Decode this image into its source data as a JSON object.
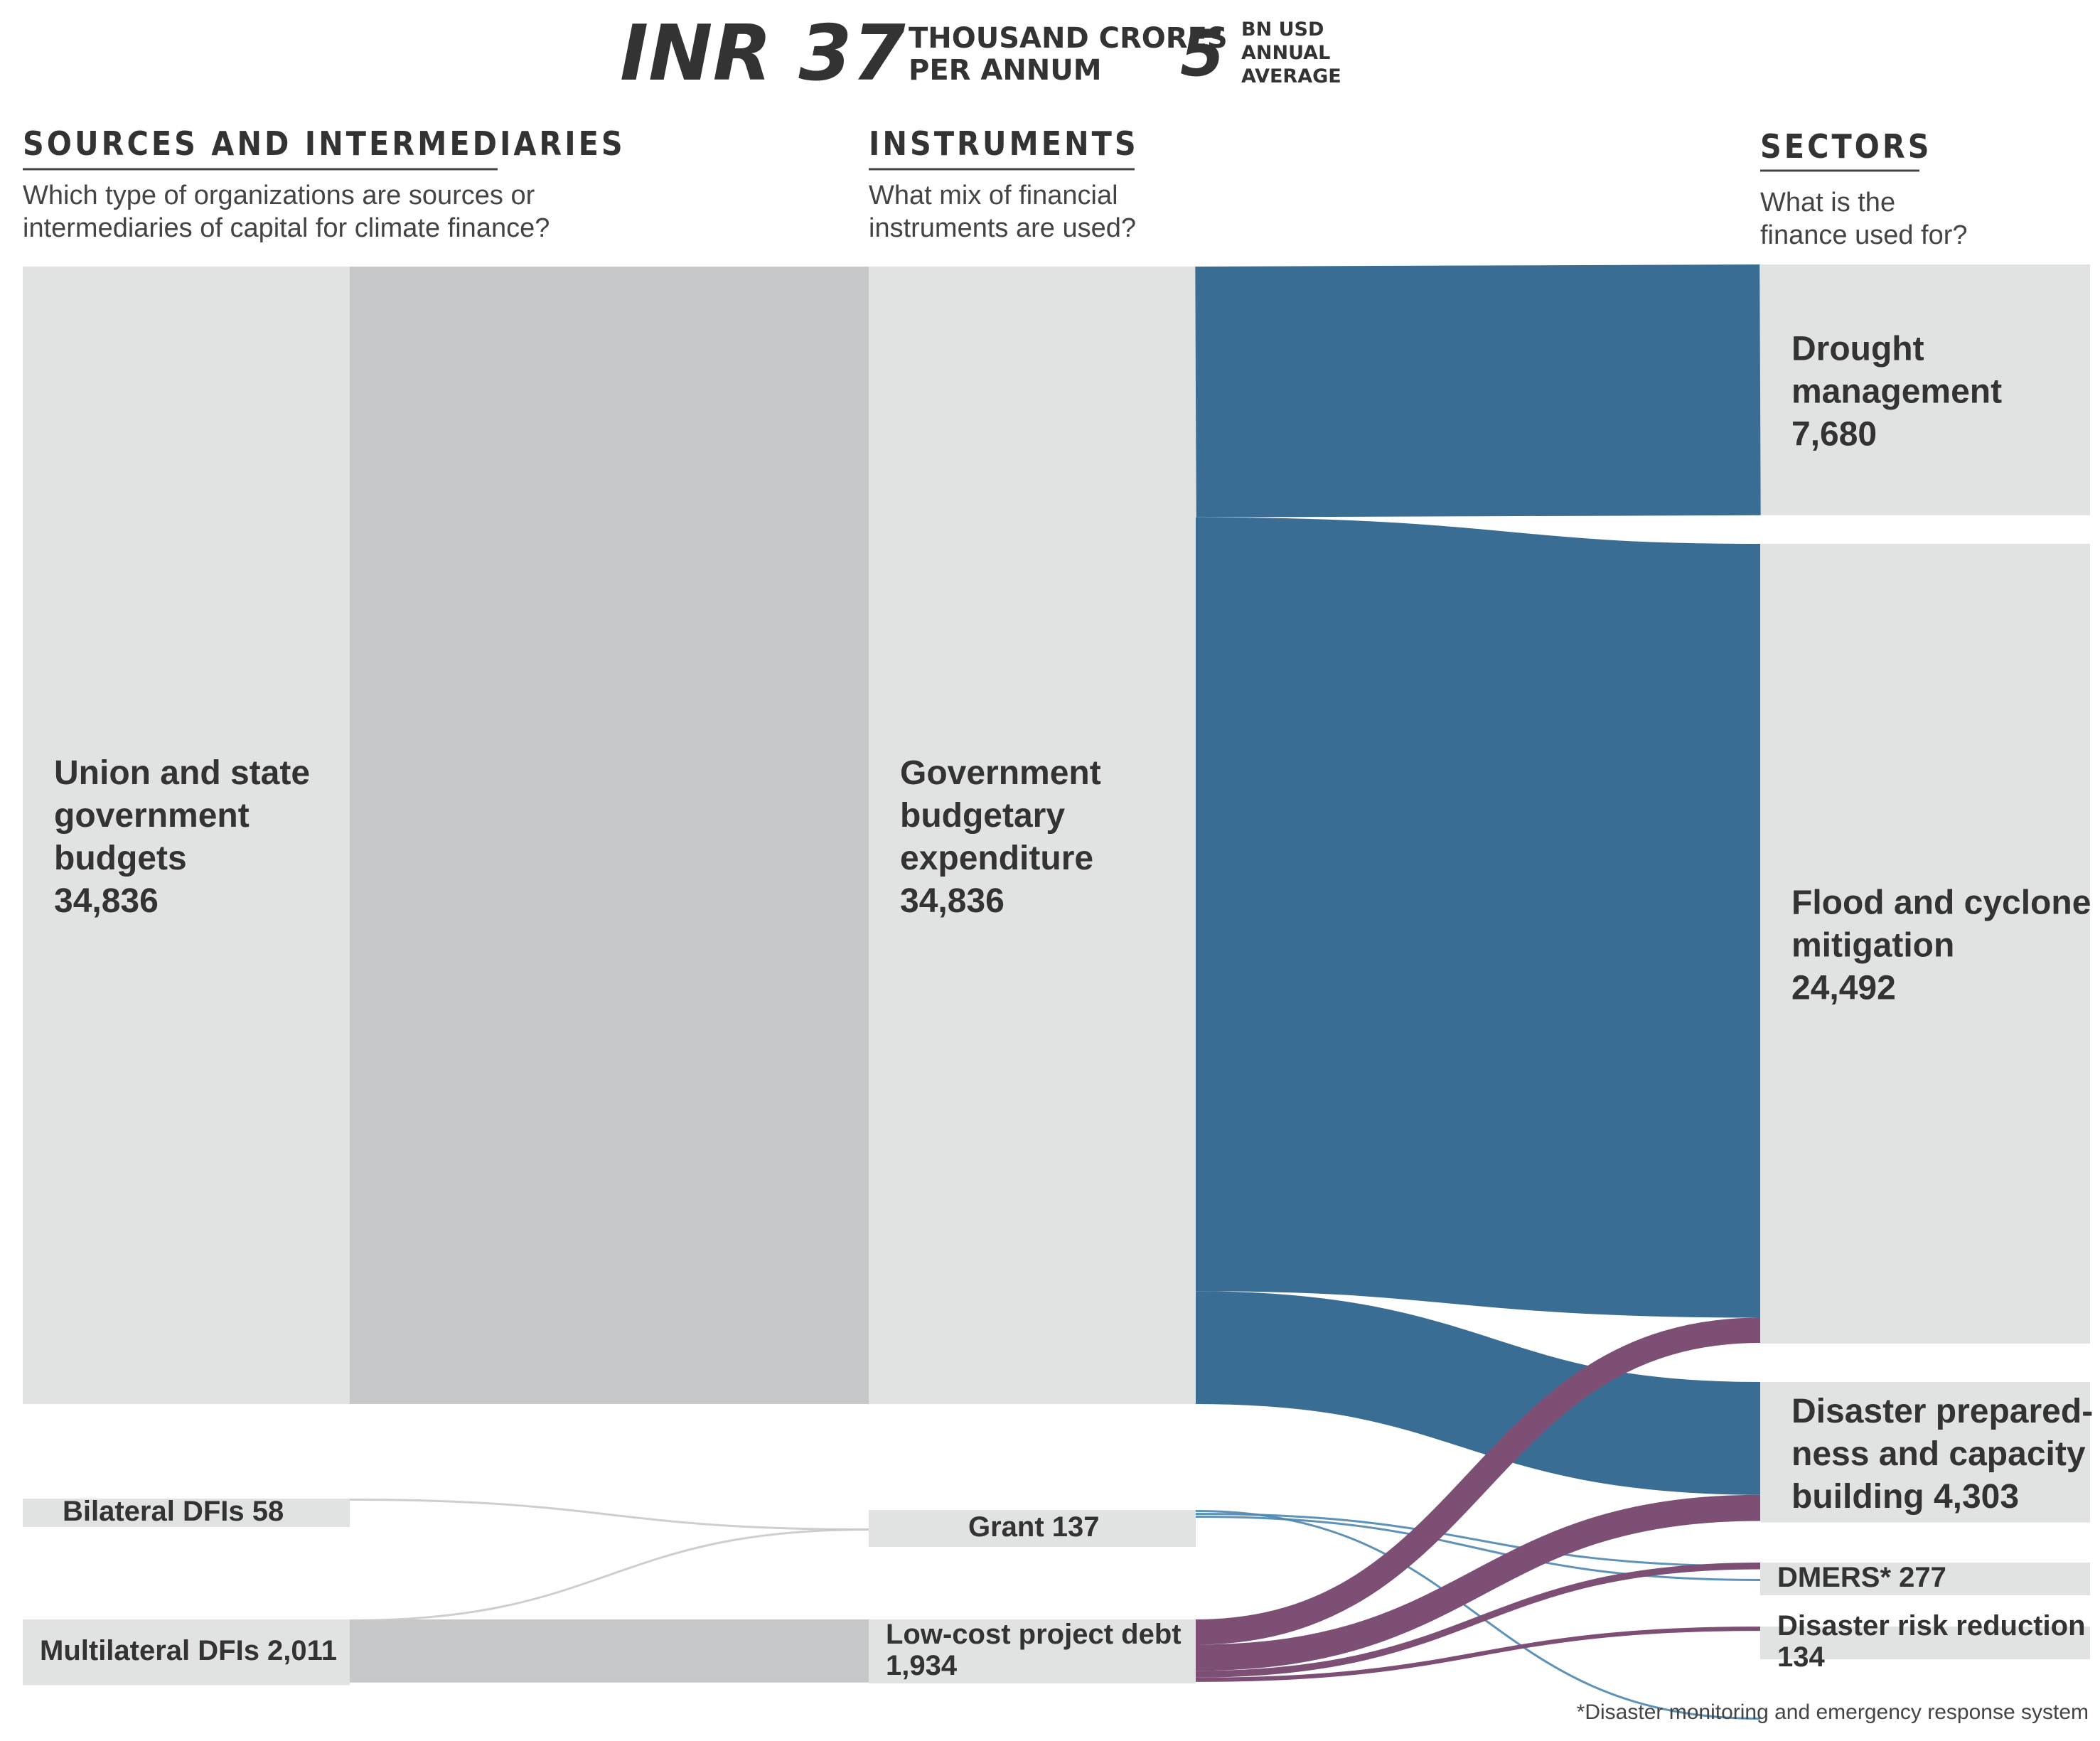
{
  "header": {
    "amount": "INR 37",
    "amount_unit_line1": "THOUSAND CRORES",
    "amount_unit_line2": "PER ANNUM",
    "usd_value": "5",
    "usd_line1": "BN USD",
    "usd_line2": "ANNUAL",
    "usd_line3": "AVERAGE"
  },
  "columns": {
    "sources": {
      "title": "SOURCES AND INTERMEDIARIES",
      "subtitle_line1": "Which type of organizations are sources or",
      "subtitle_line2": "intermediaries of capital for climate finance?"
    },
    "instruments": {
      "title": "INSTRUMENTS",
      "subtitle_line1": "What mix of financial",
      "subtitle_line2": "instruments are used?"
    },
    "sectors": {
      "title": "SECTORS",
      "subtitle_line1": "What is the",
      "subtitle_line2": "finance used for?"
    }
  },
  "colors": {
    "node_light": "#e1e2e2",
    "node_dark": "#c6c7c9",
    "flow_grant": "#4d86b0",
    "flow_budget": "#3a6d93",
    "flow_debt": "#7d4f75",
    "flow_grey": "#c9c9c9"
  },
  "footnote": "*Disaster monitoring and emergency response system",
  "chart_data": {
    "type": "sankey",
    "units": "INR crores per annum",
    "nodes": {
      "sources": [
        {
          "id": "union",
          "label_lines": [
            "Union and state",
            "government",
            "budgets",
            "34,836"
          ],
          "value": 34836
        },
        {
          "id": "bilateral",
          "label_lines": [
            "Bilateral DFIs 58"
          ],
          "value": 58
        },
        {
          "id": "multilateral",
          "label_lines": [
            "Multilateral DFIs 2,011"
          ],
          "value": 2011
        }
      ],
      "instruments": [
        {
          "id": "budget",
          "label_lines": [
            "Government",
            "budgetary",
            "expenditure",
            "34,836"
          ],
          "value": 34836
        },
        {
          "id": "grant",
          "label_lines": [
            "Grant 137"
          ],
          "value": 137
        },
        {
          "id": "debt",
          "label_lines": [
            "Low-cost project debt",
            "1,934"
          ],
          "value": 1934
        }
      ],
      "sectors": [
        {
          "id": "drought",
          "label_lines": [
            "Drought",
            "management",
            "7,680"
          ],
          "value": 7680
        },
        {
          "id": "flood",
          "label_lines": [
            "Flood and cyclone",
            "mitigation",
            "24,492"
          ],
          "value": 24492
        },
        {
          "id": "prep",
          "label_lines": [
            "Disaster prepared-",
            "ness and capacity",
            "building 4,303"
          ],
          "value": 4303
        },
        {
          "id": "dmers",
          "label_lines": [
            "DMERS* 277"
          ],
          "value": 277
        },
        {
          "id": "drr",
          "label_lines": [
            "Disaster risk reduction",
            "134"
          ],
          "value": 134
        }
      ]
    },
    "links": [
      {
        "source": "union",
        "target": "budget",
        "value": 34836
      },
      {
        "source": "bilateral",
        "target": "grant",
        "value": 58
      },
      {
        "source": "multilateral",
        "target": "grant",
        "value": 79
      },
      {
        "source": "multilateral",
        "target": "debt",
        "value": 1932
      },
      {
        "source": "budget",
        "target": "drought",
        "value": 7680
      },
      {
        "source": "budget",
        "target": "flood",
        "value": 23700
      },
      {
        "source": "budget",
        "target": "prep",
        "value": 3456
      },
      {
        "source": "grant",
        "target": "flood",
        "value": 20
      },
      {
        "source": "grant",
        "target": "prep",
        "value": 47
      },
      {
        "source": "grant",
        "target": "dmers",
        "value": 70
      },
      {
        "source": "debt",
        "target": "flood",
        "value": 772
      },
      {
        "source": "debt",
        "target": "prep",
        "value": 800
      },
      {
        "source": "debt",
        "target": "dmers",
        "value": 207
      },
      {
        "source": "debt",
        "target": "drr",
        "value": 134
      }
    ]
  }
}
